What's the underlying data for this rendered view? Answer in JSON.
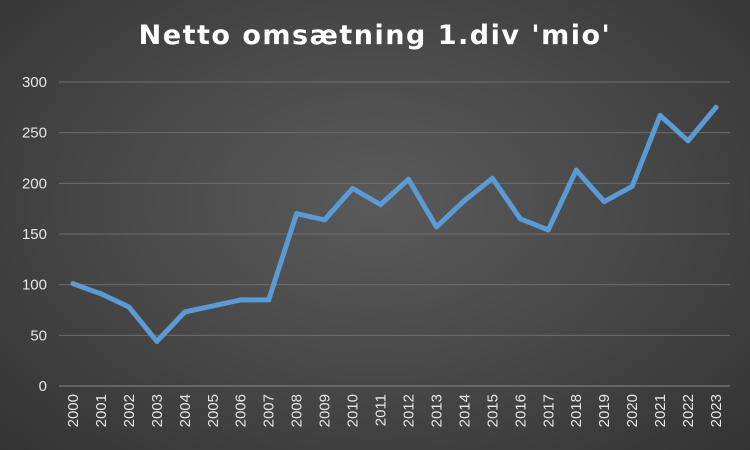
{
  "chart_data": {
    "type": "line",
    "title": "Netto omsætning 1.div 'mio'",
    "xlabel": "",
    "ylabel": "",
    "categories": [
      "2000",
      "2001",
      "2002",
      "2003",
      "2004",
      "2005",
      "2006",
      "2007",
      "2008",
      "2009",
      "2010",
      "2011",
      "2012",
      "2013",
      "2014",
      "2015",
      "2016",
      "2017",
      "2018",
      "2019",
      "2020",
      "2021",
      "2022",
      "2023"
    ],
    "series": [
      {
        "values": [
          101,
          91,
          78,
          44,
          73,
          79,
          85,
          85,
          170,
          164,
          195,
          179,
          204,
          157,
          183,
          205,
          165,
          154,
          213,
          182,
          197,
          267,
          242,
          275
        ]
      }
    ],
    "ylim": [
      0,
      300
    ],
    "yticks": [
      0,
      50,
      100,
      150,
      200,
      250,
      300
    ],
    "grid": true,
    "legend": "none",
    "colors": {
      "line": "#5b9bd5",
      "grid": "#6e6e6e",
      "background": "#484848",
      "text": "#e6e6e6"
    }
  }
}
